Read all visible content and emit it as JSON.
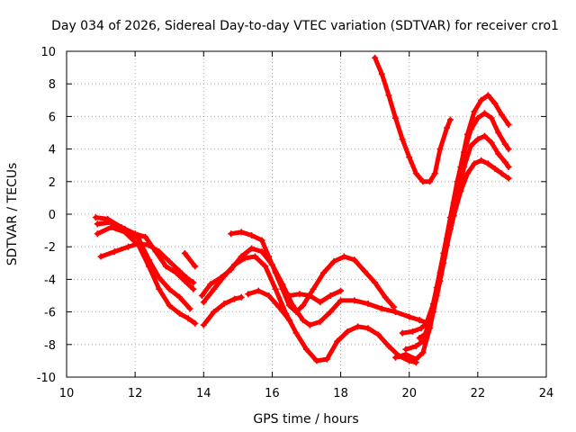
{
  "chart_data": {
    "type": "scatter",
    "title": "Day 034 of 2026, Sidereal Day-to-day VTEC variation (SDTVAR) for receiver cro1",
    "xlabel": "GPS time / hours",
    "ylabel": "SDTVAR / TECUs",
    "xlim": [
      10,
      24
    ],
    "ylim": [
      -10,
      10
    ],
    "xticks": [
      "10",
      "12",
      "14",
      "16",
      "18",
      "20",
      "22",
      "24"
    ],
    "yticks": [
      "-10",
      "-8",
      "-6",
      "-4",
      "-2",
      "0",
      "2",
      "4",
      "6",
      "8",
      "10"
    ],
    "grid": true,
    "marker": "plus",
    "color": "#ff0000",
    "series": [
      {
        "name": "track-1",
        "points": [
          [
            10.85,
            -0.2
          ],
          [
            11.2,
            -0.3
          ],
          [
            11.6,
            -0.8
          ],
          [
            12.0,
            -1.2
          ],
          [
            12.3,
            -1.4
          ],
          [
            12.6,
            -2.3
          ],
          [
            12.9,
            -3.2
          ],
          [
            13.2,
            -3.6
          ],
          [
            13.45,
            -4.1
          ],
          [
            13.7,
            -4.6
          ]
        ]
      },
      {
        "name": "track-2",
        "points": [
          [
            10.9,
            -0.6
          ],
          [
            11.3,
            -0.5
          ],
          [
            11.7,
            -0.9
          ],
          [
            12.1,
            -1.5
          ],
          [
            12.4,
            -2.8
          ],
          [
            12.7,
            -3.9
          ],
          [
            13.0,
            -4.6
          ],
          [
            13.3,
            -5.1
          ],
          [
            13.6,
            -5.8
          ]
        ]
      },
      {
        "name": "track-3",
        "points": [
          [
            10.9,
            -1.2
          ],
          [
            11.3,
            -0.8
          ],
          [
            11.7,
            -1.1
          ],
          [
            12.1,
            -1.9
          ],
          [
            12.4,
            -3.2
          ],
          [
            12.7,
            -4.6
          ],
          [
            13.0,
            -5.6
          ],
          [
            13.3,
            -6.1
          ],
          [
            13.55,
            -6.4
          ],
          [
            13.75,
            -6.7
          ]
        ]
      },
      {
        "name": "track-4",
        "points": [
          [
            11.0,
            -2.6
          ],
          [
            11.4,
            -2.3
          ],
          [
            11.8,
            -2.0
          ],
          [
            12.1,
            -1.8
          ],
          [
            12.4,
            -1.9
          ],
          [
            12.7,
            -2.3
          ],
          [
            13.0,
            -2.9
          ],
          [
            13.3,
            -3.5
          ],
          [
            13.5,
            -3.9
          ],
          [
            13.7,
            -4.2
          ]
        ]
      },
      {
        "name": "track-5",
        "points": [
          [
            13.45,
            -2.4
          ],
          [
            13.75,
            -3.2
          ]
        ]
      },
      {
        "name": "track-6",
        "points": [
          [
            13.95,
            -5.0
          ],
          [
            14.2,
            -4.3
          ],
          [
            14.5,
            -3.9
          ],
          [
            14.8,
            -3.4
          ],
          [
            15.1,
            -2.6
          ],
          [
            15.4,
            -2.1
          ],
          [
            15.7,
            -2.3
          ],
          [
            16.0,
            -3.1
          ],
          [
            16.3,
            -4.3
          ],
          [
            16.6,
            -5.6
          ],
          [
            16.9,
            -6.5
          ],
          [
            17.1,
            -6.8
          ],
          [
            17.4,
            -6.6
          ],
          [
            17.7,
            -6.0
          ],
          [
            18.0,
            -5.3
          ],
          [
            18.4,
            -5.3
          ],
          [
            18.8,
            -5.5
          ],
          [
            19.2,
            -5.8
          ],
          [
            19.6,
            -6.0
          ],
          [
            20.0,
            -6.3
          ],
          [
            20.3,
            -6.5
          ],
          [
            20.55,
            -6.7
          ]
        ]
      },
      {
        "name": "track-7",
        "points": [
          [
            14.0,
            -5.4
          ],
          [
            14.3,
            -4.6
          ],
          [
            14.6,
            -3.8
          ],
          [
            14.9,
            -3.1
          ],
          [
            15.2,
            -2.7
          ],
          [
            15.5,
            -2.6
          ],
          [
            15.8,
            -3.2
          ],
          [
            16.1,
            -4.6
          ],
          [
            16.4,
            -6.1
          ],
          [
            16.7,
            -7.3
          ],
          [
            17.0,
            -8.3
          ],
          [
            17.3,
            -9.0
          ],
          [
            17.6,
            -8.9
          ],
          [
            17.9,
            -7.8
          ],
          [
            18.2,
            -7.2
          ],
          [
            18.5,
            -6.9
          ],
          [
            18.8,
            -7.0
          ],
          [
            19.1,
            -7.4
          ],
          [
            19.4,
            -8.1
          ],
          [
            19.7,
            -8.7
          ],
          [
            20.0,
            -9.0
          ],
          [
            20.2,
            -9.1
          ]
        ]
      },
      {
        "name": "track-8",
        "points": [
          [
            14.0,
            -6.8
          ],
          [
            14.3,
            -6.0
          ],
          [
            14.6,
            -5.5
          ],
          [
            14.9,
            -5.2
          ],
          [
            15.1,
            -5.1
          ]
        ]
      },
      {
        "name": "track-9",
        "points": [
          [
            14.8,
            -1.2
          ],
          [
            15.1,
            -1.1
          ],
          [
            15.4,
            -1.3
          ],
          [
            15.7,
            -1.6
          ],
          [
            15.9,
            -2.6
          ],
          [
            16.1,
            -3.6
          ],
          [
            16.3,
            -4.6
          ],
          [
            16.5,
            -5.6
          ],
          [
            16.7,
            -6.0
          ],
          [
            16.9,
            -5.6
          ],
          [
            17.2,
            -4.6
          ],
          [
            17.5,
            -3.6
          ],
          [
            17.8,
            -2.9
          ],
          [
            18.1,
            -2.6
          ],
          [
            18.4,
            -2.8
          ],
          [
            18.7,
            -3.5
          ],
          [
            19.0,
            -4.2
          ],
          [
            19.3,
            -5.1
          ],
          [
            19.55,
            -5.7
          ]
        ]
      },
      {
        "name": "track-10",
        "points": [
          [
            15.3,
            -4.9
          ],
          [
            15.6,
            -4.7
          ],
          [
            15.9,
            -5.0
          ],
          [
            16.2,
            -5.7
          ],
          [
            16.5,
            -6.5
          ]
        ]
      },
      {
        "name": "track-11",
        "points": [
          [
            16.5,
            -5.0
          ],
          [
            16.8,
            -4.9
          ],
          [
            17.1,
            -5.0
          ],
          [
            17.4,
            -5.4
          ],
          [
            17.7,
            -5.0
          ],
          [
            18.0,
            -4.7
          ]
        ]
      },
      {
        "name": "track-12",
        "points": [
          [
            19.0,
            9.6
          ],
          [
            19.2,
            8.6
          ],
          [
            19.4,
            7.3
          ],
          [
            19.6,
            5.9
          ],
          [
            19.8,
            4.6
          ],
          [
            20.0,
            3.5
          ],
          [
            20.2,
            2.5
          ],
          [
            20.4,
            2.0
          ],
          [
            20.6,
            2.0
          ],
          [
            20.75,
            2.5
          ],
          [
            20.9,
            4.0
          ],
          [
            21.1,
            5.3
          ],
          [
            21.2,
            5.8
          ]
        ]
      },
      {
        "name": "track-13",
        "points": [
          [
            19.8,
            -7.3
          ],
          [
            20.1,
            -7.2
          ],
          [
            20.35,
            -7.0
          ],
          [
            20.5,
            -6.7
          ],
          [
            20.7,
            -5.5
          ],
          [
            20.9,
            -3.6
          ],
          [
            21.1,
            -1.5
          ],
          [
            21.3,
            0.7
          ],
          [
            21.5,
            2.9
          ],
          [
            21.7,
            4.9
          ],
          [
            21.9,
            6.3
          ],
          [
            22.1,
            7.0
          ],
          [
            22.3,
            7.3
          ],
          [
            22.5,
            6.8
          ],
          [
            22.7,
            6.1
          ],
          [
            22.9,
            5.5
          ]
        ]
      },
      {
        "name": "track-14",
        "points": [
          [
            19.9,
            -8.3
          ],
          [
            20.2,
            -8.1
          ],
          [
            20.4,
            -7.8
          ],
          [
            20.6,
            -6.5
          ],
          [
            20.8,
            -4.5
          ],
          [
            21.0,
            -2.4
          ],
          [
            21.2,
            -0.2
          ],
          [
            21.4,
            2.0
          ],
          [
            21.6,
            3.8
          ],
          [
            21.8,
            5.2
          ],
          [
            22.0,
            5.9
          ],
          [
            22.2,
            6.2
          ],
          [
            22.4,
            5.9
          ],
          [
            22.6,
            5.0
          ],
          [
            22.8,
            4.3
          ],
          [
            22.9,
            4.0
          ]
        ]
      },
      {
        "name": "track-15",
        "points": [
          [
            19.6,
            -8.8
          ],
          [
            19.9,
            -8.6
          ],
          [
            20.2,
            -8.9
          ],
          [
            20.4,
            -8.5
          ],
          [
            20.6,
            -7.0
          ],
          [
            20.8,
            -5.0
          ],
          [
            21.0,
            -3.0
          ],
          [
            21.2,
            -0.9
          ],
          [
            21.4,
            1.2
          ],
          [
            21.6,
            2.9
          ],
          [
            21.8,
            4.2
          ],
          [
            22.0,
            4.6
          ],
          [
            22.2,
            4.8
          ],
          [
            22.4,
            4.4
          ],
          [
            22.6,
            3.7
          ],
          [
            22.8,
            3.2
          ],
          [
            22.9,
            2.9
          ]
        ]
      },
      {
        "name": "track-16",
        "points": [
          [
            20.3,
            -7.6
          ],
          [
            20.5,
            -7.3
          ],
          [
            20.7,
            -6.0
          ],
          [
            20.9,
            -4.1
          ],
          [
            21.1,
            -1.9
          ],
          [
            21.3,
            -0.1
          ],
          [
            21.5,
            1.4
          ],
          [
            21.7,
            2.5
          ],
          [
            21.9,
            3.1
          ],
          [
            22.1,
            3.3
          ],
          [
            22.3,
            3.1
          ],
          [
            22.5,
            2.8
          ],
          [
            22.7,
            2.5
          ],
          [
            22.9,
            2.2
          ]
        ]
      }
    ]
  }
}
